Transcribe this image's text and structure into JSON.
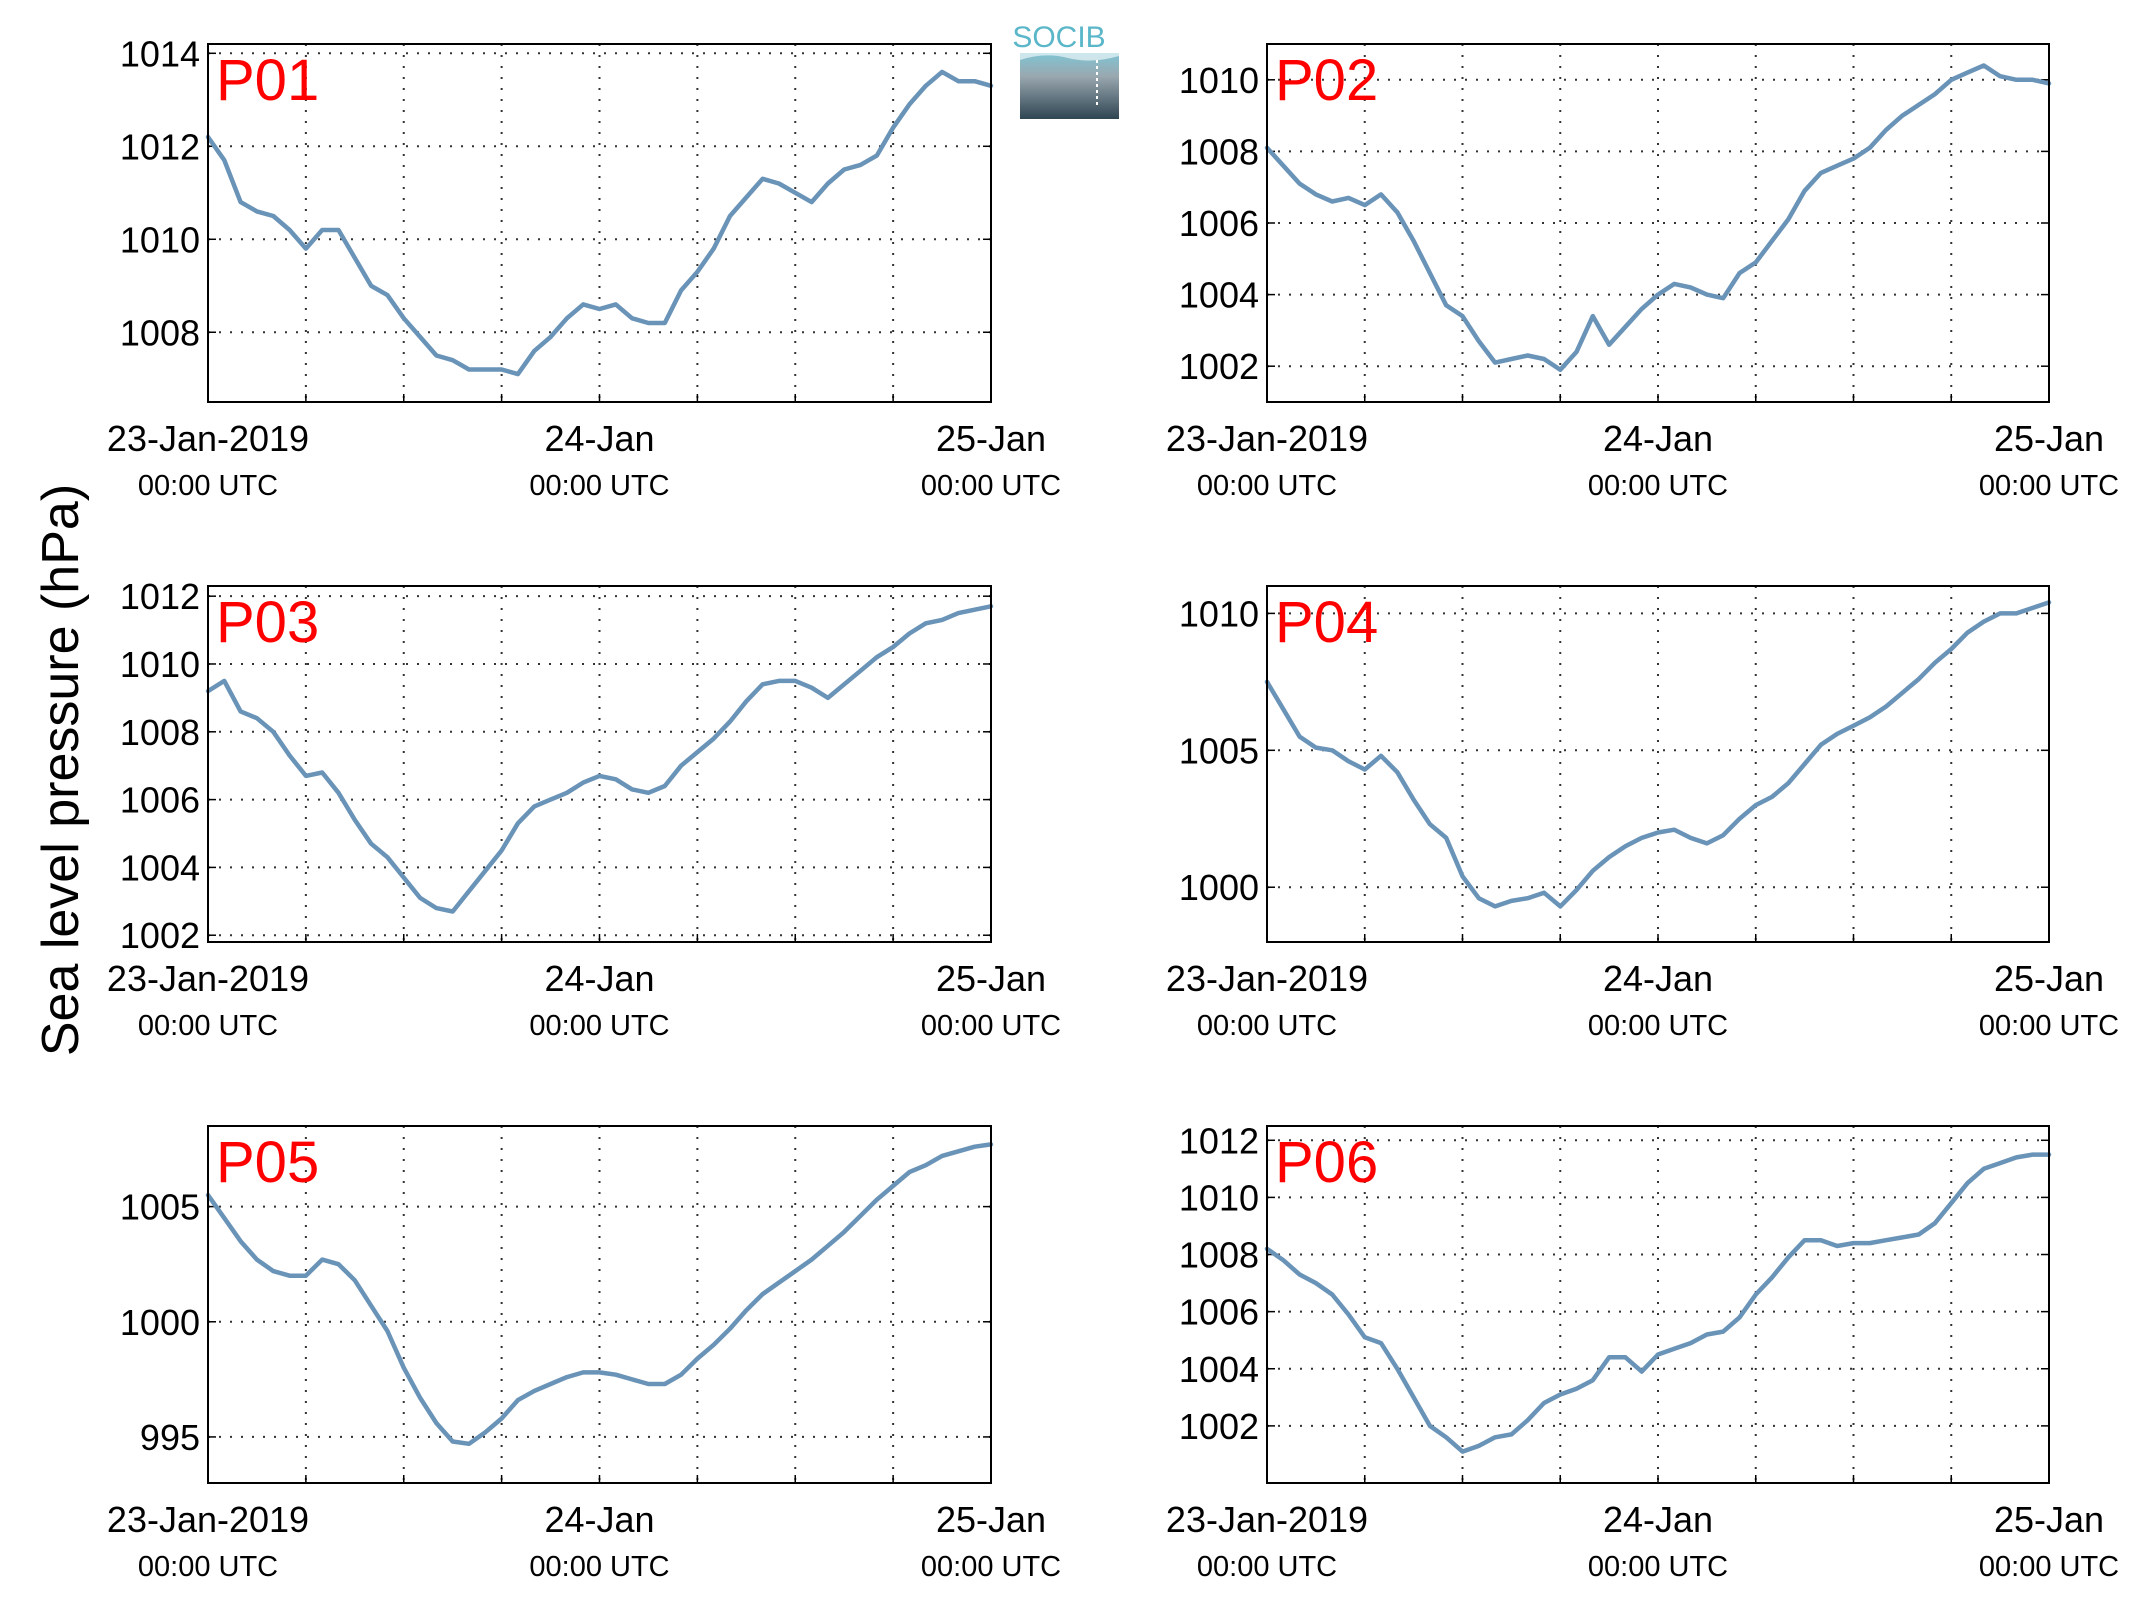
{
  "figure": {
    "ylabel": "Sea level pressure (hPa)",
    "logo_text": "SOCIB",
    "line_color": "#6a93b8",
    "panel_label_color": "#ff0000",
    "x_ticks": [
      {
        "hour": 0,
        "date": "23-Jan-2019",
        "time": "00:00 UTC"
      },
      {
        "hour": 24,
        "date": "24-Jan",
        "time": "00:00 UTC"
      },
      {
        "hour": 48,
        "date": "25-Jan",
        "time": "00:00 UTC"
      }
    ]
  },
  "chart_data": [
    {
      "type": "line",
      "title": "P01",
      "xlim": [
        0,
        48
      ],
      "ylim": [
        1006.5,
        1014.2
      ],
      "yticks": [
        1008,
        1010,
        1012,
        1014
      ],
      "x": [
        0,
        1,
        2,
        3,
        4,
        5,
        6,
        7,
        8,
        9,
        10,
        11,
        12,
        13,
        14,
        15,
        16,
        17,
        18,
        19,
        20,
        21,
        22,
        23,
        24,
        25,
        26,
        27,
        28,
        29,
        30,
        31,
        32,
        33,
        34,
        35,
        36,
        37,
        38,
        39,
        40,
        41,
        42,
        43,
        44,
        45,
        46,
        47,
        48
      ],
      "y": [
        1012.2,
        1011.7,
        1010.8,
        1010.6,
        1010.5,
        1010.2,
        1009.8,
        1010.2,
        1010.2,
        1009.6,
        1009.0,
        1008.8,
        1008.3,
        1007.9,
        1007.5,
        1007.4,
        1007.2,
        1007.2,
        1007.2,
        1007.1,
        1007.6,
        1007.9,
        1008.3,
        1008.6,
        1008.5,
        1008.6,
        1008.3,
        1008.2,
        1008.2,
        1008.9,
        1009.3,
        1009.8,
        1010.5,
        1010.9,
        1011.3,
        1011.2,
        1011.0,
        1010.8,
        1011.2,
        1011.5,
        1011.6,
        1011.8,
        1012.4,
        1012.9,
        1013.3,
        1013.6,
        1013.4,
        1013.4,
        1013.3
      ]
    },
    {
      "type": "line",
      "title": "P02",
      "xlim": [
        0,
        48
      ],
      "ylim": [
        1001.0,
        1011.0
      ],
      "yticks": [
        1002,
        1004,
        1006,
        1008,
        1010
      ],
      "x": [
        0,
        1,
        2,
        3,
        4,
        5,
        6,
        7,
        8,
        9,
        10,
        11,
        12,
        13,
        14,
        15,
        16,
        17,
        18,
        19,
        20,
        21,
        22,
        23,
        24,
        25,
        26,
        27,
        28,
        29,
        30,
        31,
        32,
        33,
        34,
        35,
        36,
        37,
        38,
        39,
        40,
        41,
        42,
        43,
        44,
        45,
        46,
        47,
        48
      ],
      "y": [
        1008.1,
        1007.6,
        1007.1,
        1006.8,
        1006.6,
        1006.7,
        1006.5,
        1006.8,
        1006.3,
        1005.5,
        1004.6,
        1003.7,
        1003.4,
        1002.7,
        1002.1,
        1002.2,
        1002.3,
        1002.2,
        1001.9,
        1002.4,
        1003.4,
        1002.6,
        1003.1,
        1003.6,
        1004.0,
        1004.3,
        1004.2,
        1004.0,
        1003.9,
        1004.6,
        1004.9,
        1005.5,
        1006.1,
        1006.9,
        1007.4,
        1007.6,
        1007.8,
        1008.1,
        1008.6,
        1009.0,
        1009.3,
        1009.6,
        1010.0,
        1010.2,
        1010.4,
        1010.1,
        1010.0,
        1010.0,
        1009.9
      ]
    },
    {
      "type": "line",
      "title": "P03",
      "xlim": [
        0,
        48
      ],
      "ylim": [
        1001.8,
        1012.3
      ],
      "yticks": [
        1002,
        1004,
        1006,
        1008,
        1010,
        1012
      ],
      "x": [
        0,
        1,
        2,
        3,
        4,
        5,
        6,
        7,
        8,
        9,
        10,
        11,
        12,
        13,
        14,
        15,
        16,
        17,
        18,
        19,
        20,
        21,
        22,
        23,
        24,
        25,
        26,
        27,
        28,
        29,
        30,
        31,
        32,
        33,
        34,
        35,
        36,
        37,
        38,
        39,
        40,
        41,
        42,
        43,
        44,
        45,
        46,
        47,
        48
      ],
      "y": [
        1009.2,
        1009.5,
        1008.6,
        1008.4,
        1008.0,
        1007.3,
        1006.7,
        1006.8,
        1006.2,
        1005.4,
        1004.7,
        1004.3,
        1003.7,
        1003.1,
        1002.8,
        1002.7,
        1003.3,
        1003.9,
        1004.5,
        1005.3,
        1005.8,
        1006.0,
        1006.2,
        1006.5,
        1006.7,
        1006.6,
        1006.3,
        1006.2,
        1006.4,
        1007.0,
        1007.4,
        1007.8,
        1008.3,
        1008.9,
        1009.4,
        1009.5,
        1009.5,
        1009.3,
        1009.0,
        1009.4,
        1009.8,
        1010.2,
        1010.5,
        1010.9,
        1011.2,
        1011.3,
        1011.5,
        1011.6,
        1011.7
      ]
    },
    {
      "type": "line",
      "title": "P04",
      "xlim": [
        0,
        48
      ],
      "ylim": [
        998.0,
        1011.0
      ],
      "yticks": [
        1000,
        1005,
        1010
      ],
      "x": [
        0,
        1,
        2,
        3,
        4,
        5,
        6,
        7,
        8,
        9,
        10,
        11,
        12,
        13,
        14,
        15,
        16,
        17,
        18,
        19,
        20,
        21,
        22,
        23,
        24,
        25,
        26,
        27,
        28,
        29,
        30,
        31,
        32,
        33,
        34,
        35,
        36,
        37,
        38,
        39,
        40,
        41,
        42,
        43,
        44,
        45,
        46,
        47,
        48
      ],
      "y": [
        1007.5,
        1006.5,
        1005.5,
        1005.1,
        1005.0,
        1004.6,
        1004.3,
        1004.8,
        1004.2,
        1003.2,
        1002.3,
        1001.8,
        1000.4,
        999.6,
        999.3,
        999.5,
        999.6,
        999.8,
        999.3,
        999.9,
        1000.6,
        1001.1,
        1001.5,
        1001.8,
        1002.0,
        1002.1,
        1001.8,
        1001.6,
        1001.9,
        1002.5,
        1003.0,
        1003.3,
        1003.8,
        1004.5,
        1005.2,
        1005.6,
        1005.9,
        1006.2,
        1006.6,
        1007.1,
        1007.6,
        1008.2,
        1008.7,
        1009.3,
        1009.7,
        1010.0,
        1010.0,
        1010.2,
        1010.4
      ]
    },
    {
      "type": "line",
      "title": "P05",
      "xlim": [
        0,
        48
      ],
      "ylim": [
        993.0,
        1008.5
      ],
      "yticks": [
        995,
        1000,
        1005
      ],
      "x": [
        0,
        1,
        2,
        3,
        4,
        5,
        6,
        7,
        8,
        9,
        10,
        11,
        12,
        13,
        14,
        15,
        16,
        17,
        18,
        19,
        20,
        21,
        22,
        23,
        24,
        25,
        26,
        27,
        28,
        29,
        30,
        31,
        32,
        33,
        34,
        35,
        36,
        37,
        38,
        39,
        40,
        41,
        42,
        43,
        44,
        45,
        46,
        47,
        48
      ],
      "y": [
        1005.5,
        1004.5,
        1003.5,
        1002.7,
        1002.2,
        1002.0,
        1002.0,
        1002.7,
        1002.5,
        1001.8,
        1000.7,
        999.6,
        998.0,
        996.7,
        995.6,
        994.8,
        994.7,
        995.2,
        995.8,
        996.6,
        997.0,
        997.3,
        997.6,
        997.8,
        997.8,
        997.7,
        997.5,
        997.3,
        997.3,
        997.7,
        998.4,
        999.0,
        999.7,
        1000.5,
        1001.2,
        1001.7,
        1002.2,
        1002.7,
        1003.3,
        1003.9,
        1004.6,
        1005.3,
        1005.9,
        1006.5,
        1006.8,
        1007.2,
        1007.4,
        1007.6,
        1007.7
      ]
    },
    {
      "type": "line",
      "title": "P06",
      "xlim": [
        0,
        48
      ],
      "ylim": [
        1000.0,
        1012.5
      ],
      "yticks": [
        1002,
        1004,
        1006,
        1008,
        1010,
        1012
      ],
      "x": [
        0,
        1,
        2,
        3,
        4,
        5,
        6,
        7,
        8,
        9,
        10,
        11,
        12,
        13,
        14,
        15,
        16,
        17,
        18,
        19,
        20,
        21,
        22,
        23,
        24,
        25,
        26,
        27,
        28,
        29,
        30,
        31,
        32,
        33,
        34,
        35,
        36,
        37,
        38,
        39,
        40,
        41,
        42,
        43,
        44,
        45,
        46,
        47,
        48
      ],
      "y": [
        1008.2,
        1007.8,
        1007.3,
        1007.0,
        1006.6,
        1005.9,
        1005.1,
        1004.9,
        1004.0,
        1003.0,
        1002.0,
        1001.6,
        1001.1,
        1001.3,
        1001.6,
        1001.7,
        1002.2,
        1002.8,
        1003.1,
        1003.3,
        1003.6,
        1004.4,
        1004.4,
        1003.9,
        1004.5,
        1004.7,
        1004.9,
        1005.2,
        1005.3,
        1005.8,
        1006.6,
        1007.2,
        1007.9,
        1008.5,
        1008.5,
        1008.3,
        1008.4,
        1008.4,
        1008.5,
        1008.6,
        1008.7,
        1009.1,
        1009.8,
        1010.5,
        1011.0,
        1011.2,
        1011.4,
        1011.5,
        1011.5
      ]
    }
  ]
}
